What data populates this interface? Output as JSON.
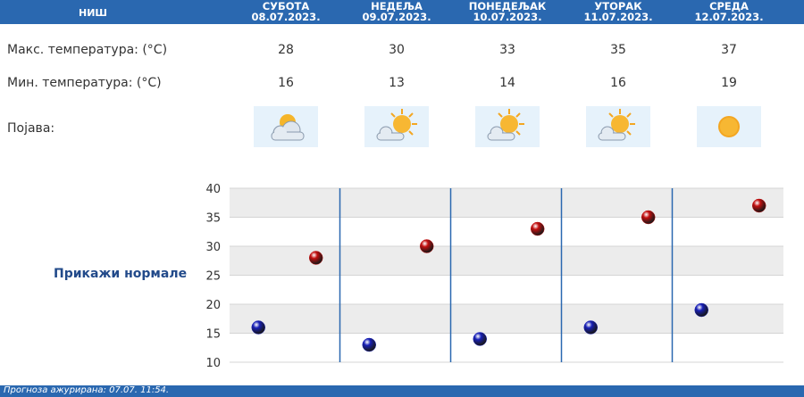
{
  "header": {
    "city": "НИШ",
    "days": [
      {
        "name": "СУБОТА",
        "date": "08.07.2023."
      },
      {
        "name": "НЕДЕЉА",
        "date": "09.07.2023."
      },
      {
        "name": "ПОНЕДЕЉАК",
        "date": "10.07.2023."
      },
      {
        "name": "УТОРАК",
        "date": "11.07.2023."
      },
      {
        "name": "СРЕДА",
        "date": "12.07.2023."
      }
    ]
  },
  "rows": {
    "max_label": "Макс. температура: (°C)",
    "min_label": "Мин. температура: (°C)",
    "phenomenon_label": "Појава:"
  },
  "max_temps": [
    "28",
    "30",
    "33",
    "35",
    "37"
  ],
  "min_temps": [
    "16",
    "13",
    "14",
    "16",
    "19"
  ],
  "icons": [
    "sun-cloud-icon",
    "sun-cloud-icon",
    "sun-cloud-icon",
    "sun-cloud-icon",
    "sun-icon"
  ],
  "show_normals": "Прикажи нормале",
  "footer_text": "Прогноза ажурирана: 07.07. 11:54.",
  "colors": {
    "header_bg": "#2a68b0",
    "max_dot": "#c41010",
    "min_dot": "#1820b8",
    "link": "#224a8a"
  },
  "chart_data": {
    "type": "scatter",
    "y_ticks": [
      "10",
      "15",
      "20",
      "25",
      "30",
      "35",
      "40"
    ],
    "ylim": [
      10,
      40
    ],
    "grid": true,
    "categories": [
      "08.07.2023.",
      "09.07.2023.",
      "10.07.2023.",
      "11.07.2023.",
      "12.07.2023."
    ],
    "series": [
      {
        "values": [
          28,
          30,
          33,
          35,
          37
        ],
        "color": "#c41010"
      },
      {
        "values": [
          16,
          13,
          14,
          16,
          19
        ],
        "color": "#1820b8"
      }
    ]
  }
}
